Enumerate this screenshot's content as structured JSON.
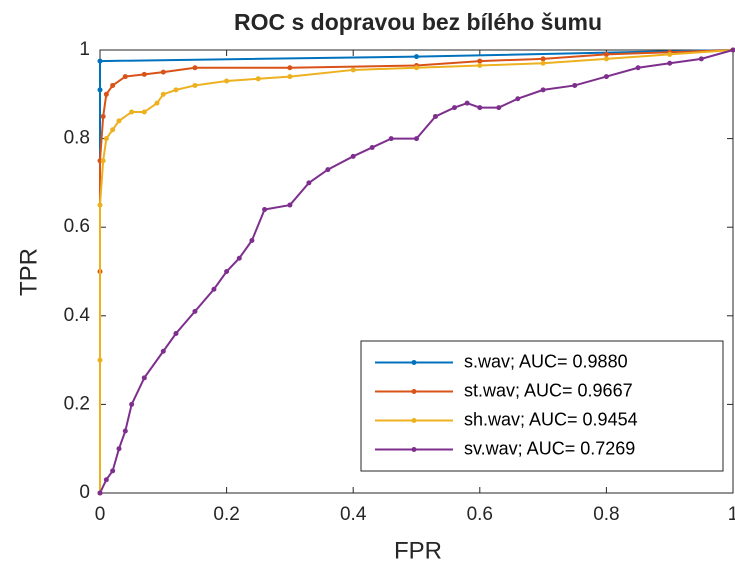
{
  "chart_data": {
    "type": "line",
    "title": "ROC s dopravou bez bílého šumu",
    "xlabel": "FPR",
    "ylabel": "TPR",
    "xlim": [
      0,
      1
    ],
    "ylim": [
      0,
      1
    ],
    "xticks": [
      0,
      0.2,
      0.4,
      0.6,
      0.8,
      1
    ],
    "yticks": [
      0,
      0.2,
      0.4,
      0.6,
      0.8,
      1
    ],
    "grid": false,
    "legend": "southeast",
    "series": [
      {
        "name": "s.wav; AUC= 0.9880",
        "color": "#0072bd",
        "x": [
          0,
          0,
          0,
          0.5,
          1
        ],
        "values": [
          0,
          0.91,
          0.975,
          0.985,
          1
        ]
      },
      {
        "name": "st.wav; AUC= 0.9667",
        "color": "#d95319",
        "x": [
          0,
          0,
          0,
          0.005,
          0.01,
          0.02,
          0.04,
          0.07,
          0.1,
          0.15,
          0.3,
          0.5,
          0.6,
          0.7,
          0.8,
          0.9,
          1
        ],
        "values": [
          0,
          0.5,
          0.75,
          0.85,
          0.9,
          0.92,
          0.94,
          0.945,
          0.95,
          0.96,
          0.96,
          0.965,
          0.975,
          0.98,
          0.99,
          0.995,
          1
        ]
      },
      {
        "name": "sh.wav; AUC= 0.9454",
        "color": "#edb120",
        "x": [
          0,
          0,
          0,
          0.005,
          0.01,
          0.02,
          0.03,
          0.05,
          0.07,
          0.09,
          0.1,
          0.12,
          0.15,
          0.2,
          0.25,
          0.3,
          0.4,
          0.5,
          0.6,
          0.7,
          0.8,
          0.9,
          1
        ],
        "values": [
          0,
          0.3,
          0.65,
          0.75,
          0.8,
          0.82,
          0.84,
          0.86,
          0.86,
          0.88,
          0.9,
          0.91,
          0.92,
          0.93,
          0.935,
          0.94,
          0.955,
          0.96,
          0.965,
          0.97,
          0.98,
          0.99,
          1
        ]
      },
      {
        "name": "sv.wav; AUC= 0.7269",
        "color": "#7e2f8e",
        "x": [
          0,
          0.01,
          0.02,
          0.03,
          0.04,
          0.05,
          0.07,
          0.1,
          0.12,
          0.15,
          0.18,
          0.2,
          0.22,
          0.24,
          0.26,
          0.3,
          0.33,
          0.36,
          0.4,
          0.43,
          0.46,
          0.5,
          0.53,
          0.56,
          0.58,
          0.6,
          0.63,
          0.66,
          0.7,
          0.75,
          0.8,
          0.85,
          0.9,
          0.95,
          1
        ],
        "values": [
          0,
          0.03,
          0.05,
          0.1,
          0.14,
          0.2,
          0.26,
          0.32,
          0.36,
          0.41,
          0.46,
          0.5,
          0.53,
          0.57,
          0.64,
          0.65,
          0.7,
          0.73,
          0.76,
          0.78,
          0.8,
          0.8,
          0.85,
          0.87,
          0.88,
          0.87,
          0.87,
          0.89,
          0.91,
          0.92,
          0.94,
          0.96,
          0.97,
          0.98,
          1
        ]
      }
    ]
  }
}
